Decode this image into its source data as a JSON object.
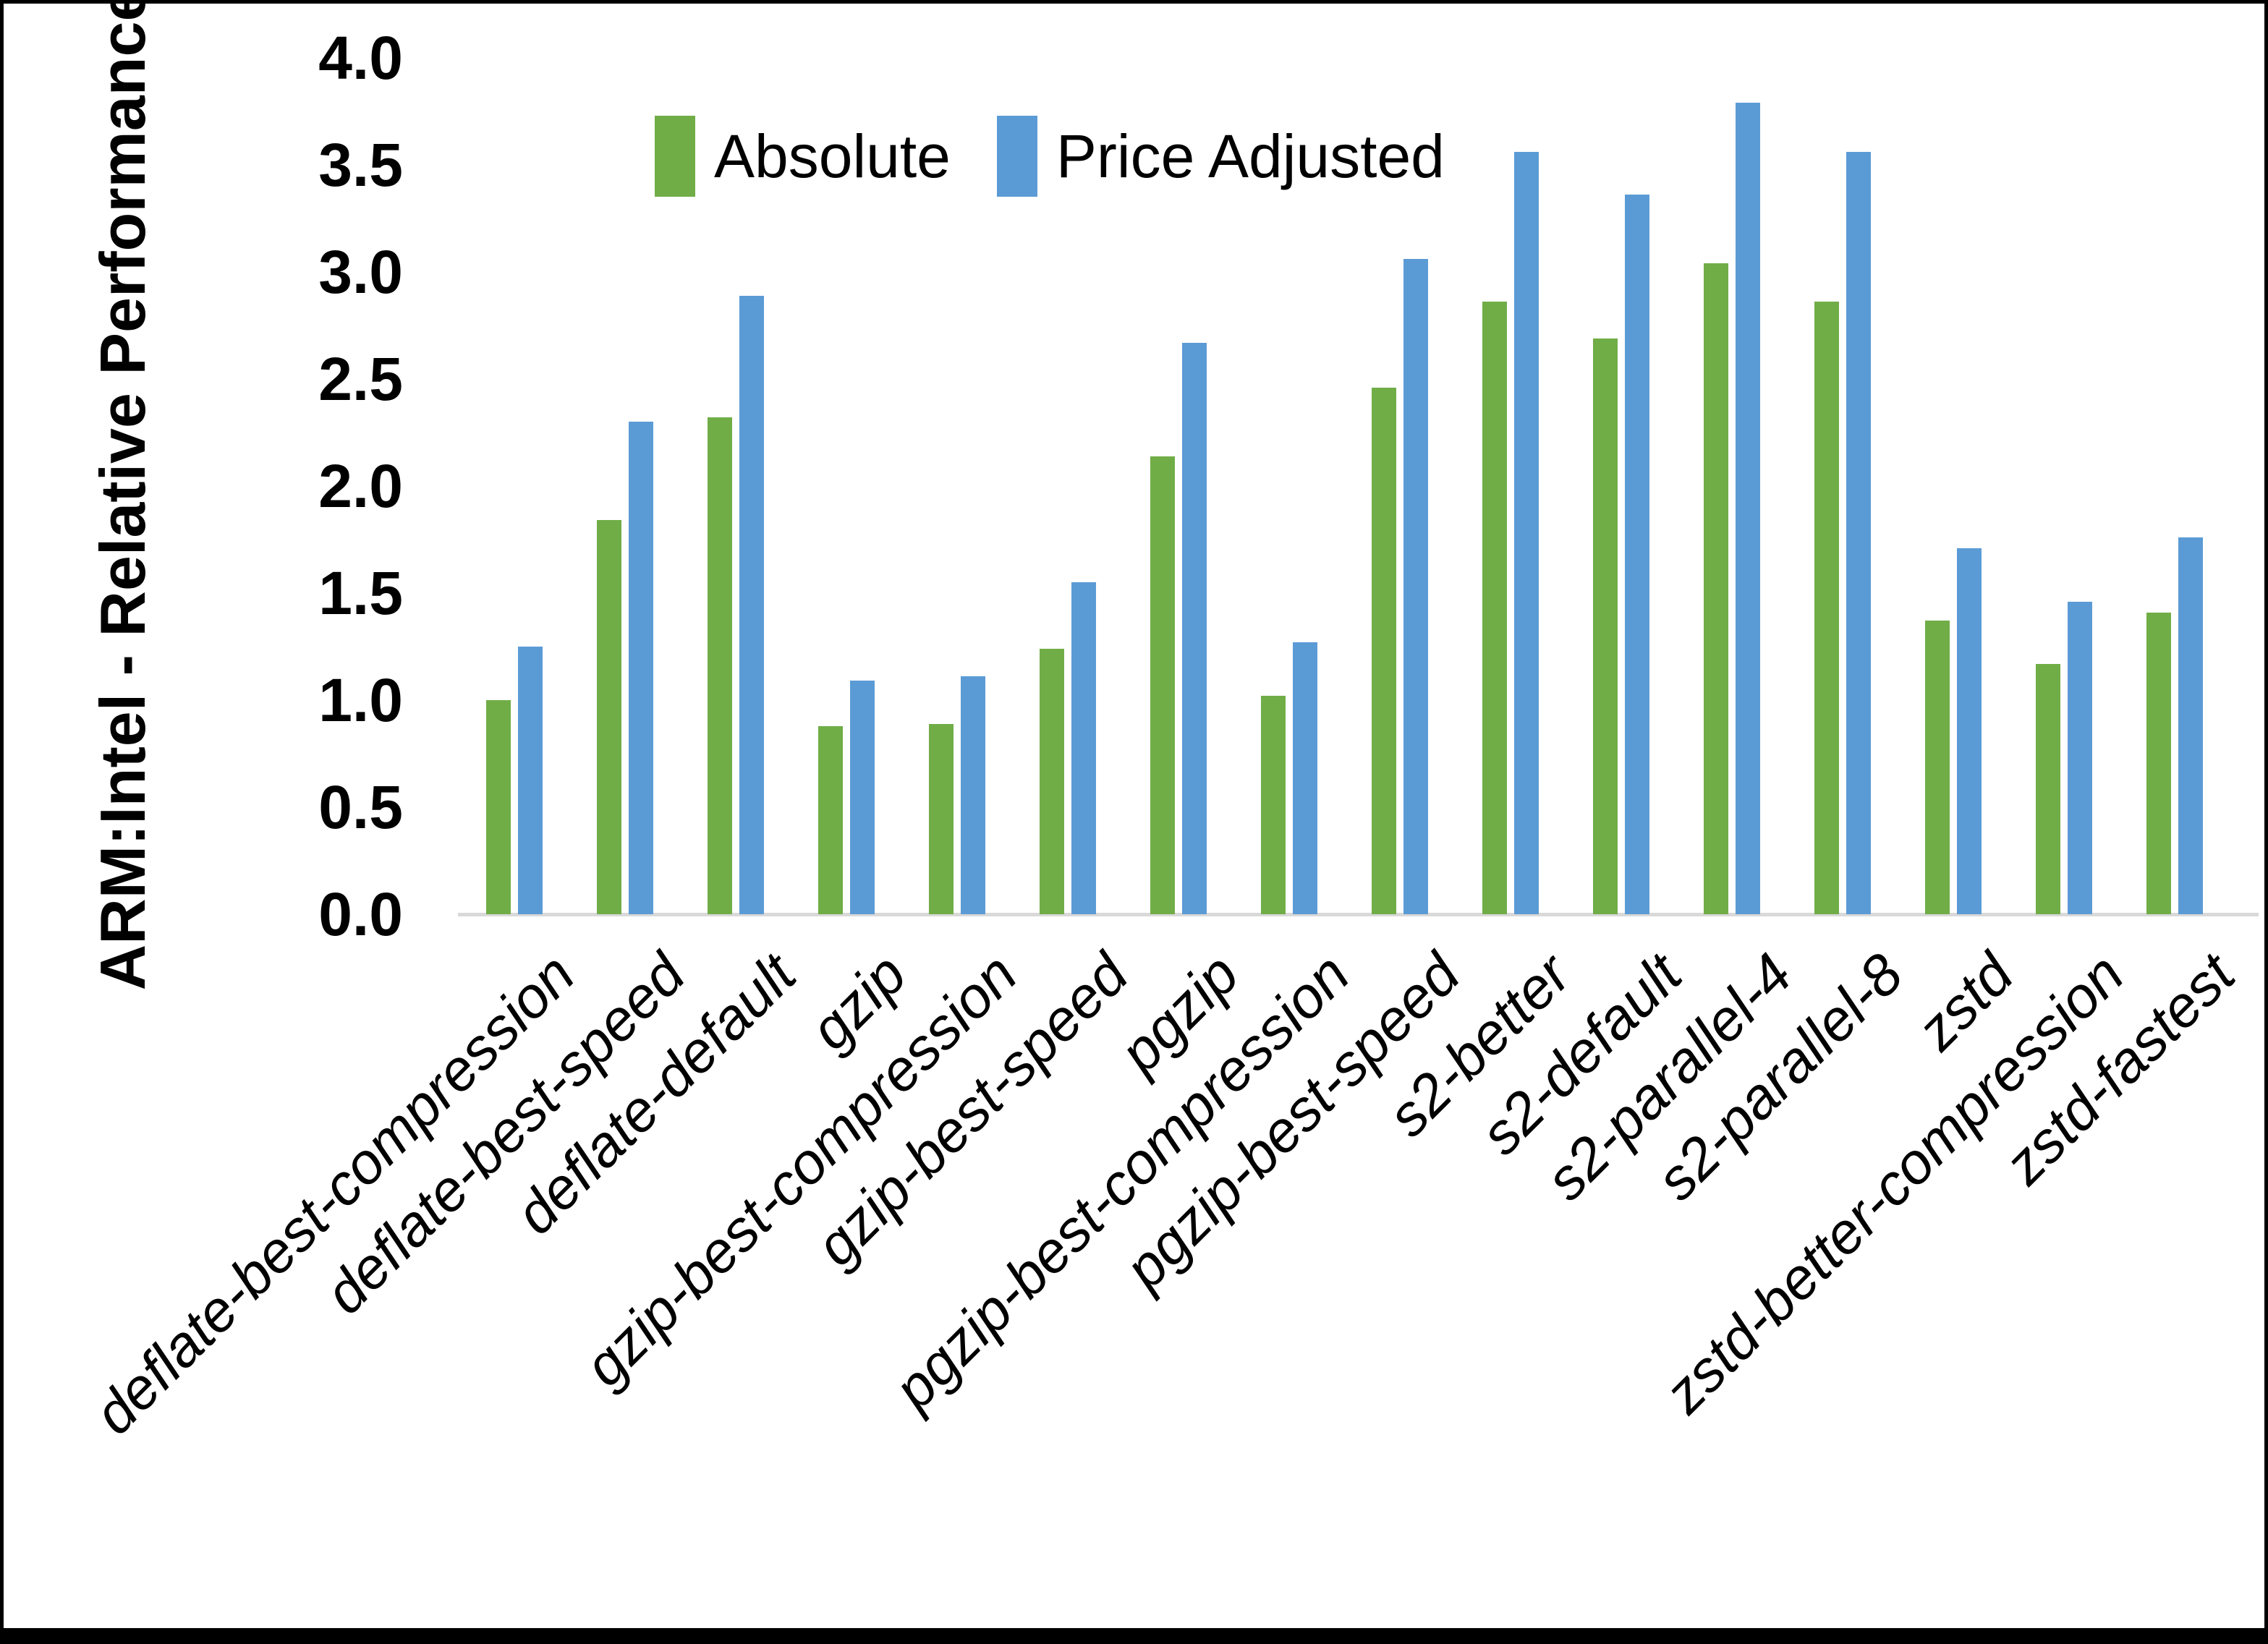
{
  "figure": {
    "background": "#FFFFFF",
    "border_color": "#000000"
  },
  "y_axis": {
    "title": "ARM:Intel - Relative Performance",
    "tick_labels": [
      "0.0",
      "0.5",
      "1.0",
      "1.5",
      "2.0",
      "2.5",
      "3.0",
      "3.5",
      "4.0"
    ]
  },
  "legend": {
    "items": [
      {
        "label": "Absolute",
        "color": "#70AD47"
      },
      {
        "label": "Price Adjusted",
        "color": "#5B9BD5"
      }
    ]
  },
  "chart_data": {
    "type": "bar",
    "title": "",
    "xlabel": "",
    "ylabel": "ARM:Intel - Relative Performance",
    "ylim": [
      0.0,
      4.0
    ],
    "ytick_step": 0.5,
    "grid": false,
    "legend_position": "top-center",
    "categories": [
      "deflate-best-compression",
      "deflate-best-speed",
      "deflate-default",
      "gzip",
      "gzip-best-compression",
      "gzip-best-speed",
      "pgzip",
      "pgzip-best-compression",
      "pgzip-best-speed",
      "s2-better",
      "s2-default",
      "s2-parallel-4",
      "s2-parallel-8",
      "zstd",
      "zstd-better-compression",
      "zstd-fastest"
    ],
    "series": [
      {
        "name": "Absolute",
        "color": "#70AD47",
        "values": [
          1.0,
          1.84,
          2.32,
          0.88,
          0.89,
          1.24,
          2.14,
          1.02,
          2.46,
          2.86,
          2.69,
          3.04,
          2.86,
          1.37,
          1.17,
          1.41
        ]
      },
      {
        "name": "Price Adjusted",
        "color": "#5B9BD5",
        "values": [
          1.25,
          2.3,
          2.89,
          1.09,
          1.11,
          1.55,
          2.67,
          1.27,
          3.06,
          3.56,
          3.36,
          3.79,
          3.56,
          1.71,
          1.46,
          1.76
        ]
      }
    ]
  }
}
